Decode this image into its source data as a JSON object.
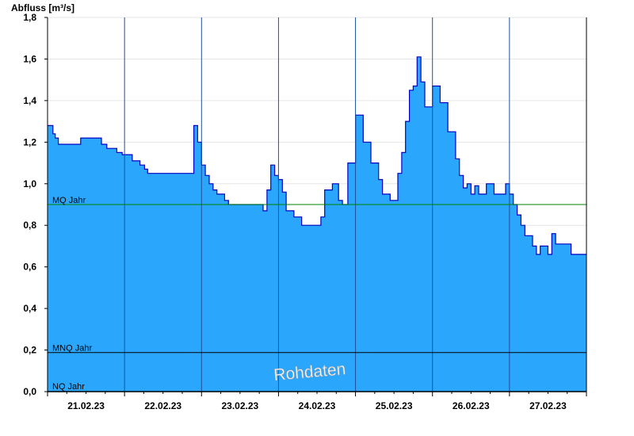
{
  "chart_data": {
    "type": "area",
    "ylabel": "Abfluss [m³/s]",
    "ylim": [
      0,
      1.8
    ],
    "yticks": [
      {
        "v": 0.0,
        "label": "0,0"
      },
      {
        "v": 0.2,
        "label": "0,2"
      },
      {
        "v": 0.4,
        "label": "0,4"
      },
      {
        "v": 0.6,
        "label": "0,6"
      },
      {
        "v": 0.8,
        "label": "0,8"
      },
      {
        "v": 1.0,
        "label": "1,0"
      },
      {
        "v": 1.2,
        "label": "1,2"
      },
      {
        "v": 1.4,
        "label": "1,4"
      },
      {
        "v": 1.6,
        "label": "1,6"
      },
      {
        "v": 1.8,
        "label": "1,8"
      }
    ],
    "xlim_days": [
      0,
      7
    ],
    "xticks": [
      "21.02.23",
      "22.02.23",
      "23.02.23",
      "24.02.23",
      "25.02.23",
      "26.02.23",
      "27.02.23"
    ],
    "grid": true,
    "fill_color": "#2aa7fd",
    "line_color": "#0000c0",
    "x_days": [
      0,
      0.07,
      0.1,
      0.14,
      0.4,
      0.43,
      0.7,
      0.77,
      0.9,
      0.97,
      1.0,
      1.1,
      1.2,
      1.26,
      1.3,
      1.8,
      1.9,
      1.95,
      2.0,
      2.05,
      2.1,
      2.15,
      2.2,
      2.3,
      2.35,
      2.6,
      2.8,
      2.85,
      2.9,
      2.95,
      3.0,
      3.05,
      3.1,
      3.2,
      3.3,
      3.5,
      3.55,
      3.6,
      3.7,
      3.78,
      3.83,
      3.9,
      4.0,
      4.1,
      4.2,
      4.3,
      4.35,
      4.45,
      4.55,
      4.6,
      4.65,
      4.7,
      4.75,
      4.8,
      4.85,
      4.9,
      4.95,
      5.0,
      5.1,
      5.2,
      5.3,
      5.35,
      5.4,
      5.45,
      5.5,
      5.55,
      5.6,
      5.7,
      5.8,
      5.9,
      5.95,
      6.0,
      6.05,
      6.1,
      6.15,
      6.2,
      6.3,
      6.35,
      6.4,
      6.45,
      6.5,
      6.55,
      6.6,
      6.7,
      6.8,
      6.85,
      7.0
    ],
    "values": [
      1.28,
      1.24,
      1.22,
      1.19,
      1.19,
      1.22,
      1.19,
      1.17,
      1.15,
      1.14,
      1.14,
      1.11,
      1.09,
      1.07,
      1.05,
      1.05,
      1.28,
      1.2,
      1.09,
      1.04,
      1.0,
      0.97,
      0.95,
      0.92,
      0.9,
      0.9,
      0.87,
      0.97,
      1.09,
      1.04,
      1.02,
      0.96,
      0.87,
      0.84,
      0.8,
      0.8,
      0.84,
      0.97,
      1.0,
      0.92,
      0.9,
      1.1,
      1.33,
      1.2,
      1.1,
      1.02,
      0.95,
      0.92,
      1.05,
      1.15,
      1.3,
      1.45,
      1.47,
      1.61,
      1.49,
      1.37,
      1.37,
      1.47,
      1.39,
      1.25,
      1.12,
      1.04,
      0.98,
      1.0,
      0.95,
      0.99,
      0.95,
      1.0,
      0.95,
      0.95,
      1.0,
      0.95,
      0.9,
      0.85,
      0.8,
      0.75,
      0.7,
      0.66,
      0.7,
      0.7,
      0.66,
      0.76,
      0.71,
      0.71,
      0.66,
      0.66,
      0.66
    ],
    "reference_lines": [
      {
        "label": "MQ Jahr",
        "value": 0.9,
        "color": "#008000"
      },
      {
        "label": "MNQ Jahr",
        "value": 0.188,
        "color": "#000000"
      },
      {
        "label": "NQ Jahr",
        "value": 0.0,
        "color": "#000000"
      }
    ],
    "watermark": "Rohdaten"
  }
}
